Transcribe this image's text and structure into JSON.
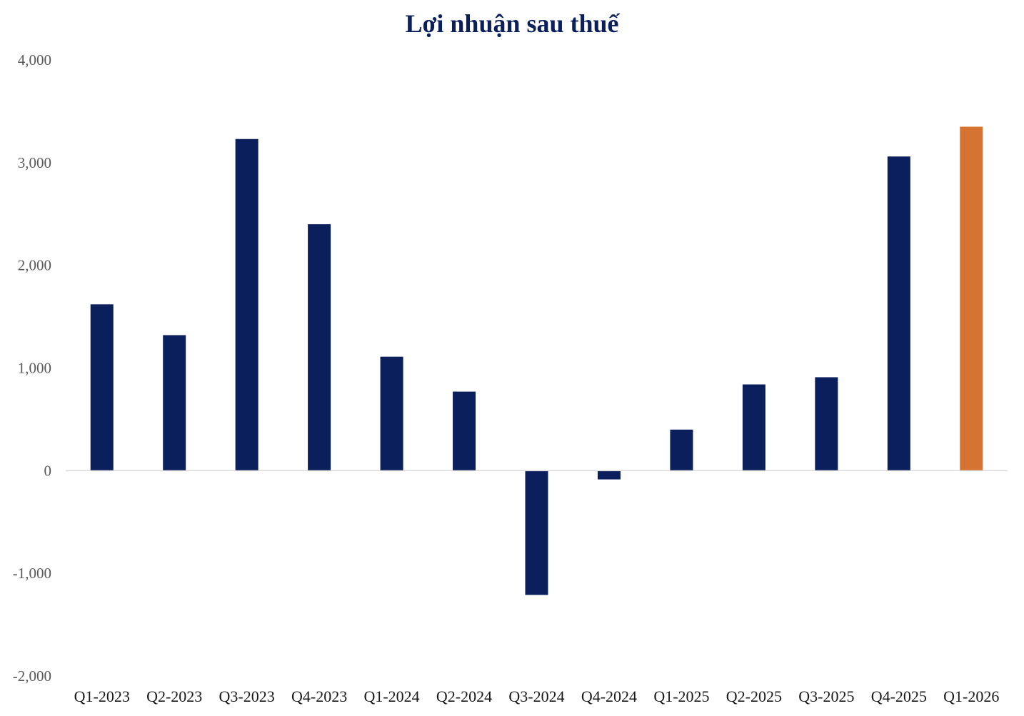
{
  "chart_data": {
    "type": "bar",
    "title": "Lợi nhuận sau thuế",
    "categories": [
      "Q1-2023",
      "Q2-2023",
      "Q3-2023",
      "Q4-2023",
      "Q1-2024",
      "Q2-2024",
      "Q3-2024",
      "Q4-2024",
      "Q1-2025",
      "Q2-2025",
      "Q3-2025",
      "Q4-2025",
      "Q1-2026"
    ],
    "values": [
      1620,
      1320,
      3230,
      2400,
      1110,
      770,
      -1210,
      -85,
      400,
      840,
      910,
      3060,
      3350
    ],
    "ylim": [
      -2000,
      4000
    ],
    "yticks": [
      4000,
      3000,
      2000,
      1000,
      0,
      -1000,
      -2000
    ],
    "ytick_labels": [
      "4,000",
      "3,000",
      "2,000",
      "1,000",
      "0",
      "-1,000",
      "-2,000"
    ],
    "xlabel": "",
    "ylabel": "",
    "grid": false,
    "colors": {
      "bar": "#0b1f5c",
      "highlight": "#d57332",
      "title": "#0b1f5c",
      "axis": "#d9d9d9"
    },
    "highlight_index": 12
  }
}
